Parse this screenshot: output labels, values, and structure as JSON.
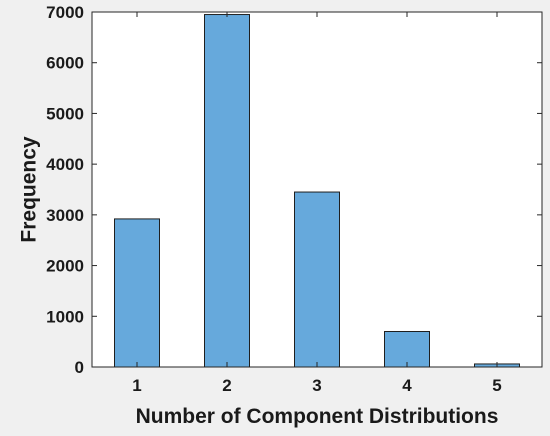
{
  "chart_data": {
    "type": "bar",
    "title": "",
    "xlabel": "Number of Component Distributions",
    "ylabel": "Frequency",
    "categories": [
      "1",
      "2",
      "3",
      "4",
      "5"
    ],
    "values": [
      2920,
      6950,
      3450,
      700,
      60
    ],
    "ylim": [
      0,
      7000
    ],
    "yticks": [
      0,
      1000,
      2000,
      3000,
      4000,
      5000,
      6000,
      7000
    ],
    "grid": false,
    "legend": "none",
    "colors": {
      "bar_fill": "#66a9dc",
      "bar_edge": "#1f1f1f",
      "axes_bg": "#ffffff",
      "figure_bg": "#f0f0f0",
      "text": "#1a1a1a"
    }
  }
}
